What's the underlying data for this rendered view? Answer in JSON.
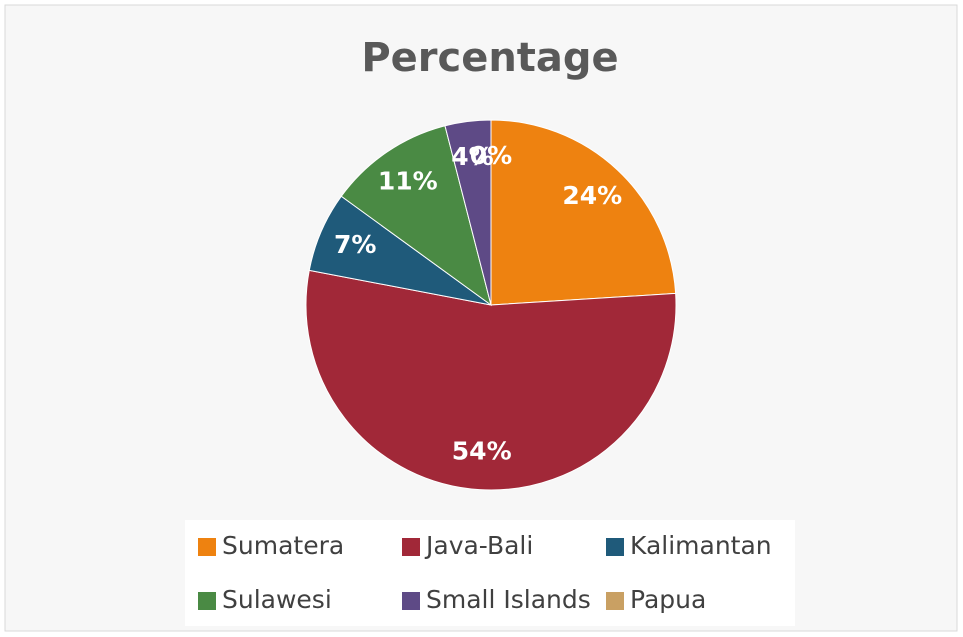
{
  "chart_data": {
    "type": "pie",
    "title": "Percentage",
    "categories": [
      "Sumatera",
      "Java-Bali",
      "Kalimantan",
      "Sulawesi",
      "Small Islands",
      "Papua"
    ],
    "values": [
      24,
      54,
      7,
      11,
      4,
      0
    ],
    "value_labels": [
      "24%",
      "54%",
      "7%",
      "11%",
      "4%",
      "0%"
    ],
    "colors": [
      "#ee8210",
      "#a12838",
      "#1f5a7a",
      "#4a8a44",
      "#5e4a86",
      "#c9a063"
    ],
    "legend": "bottom"
  }
}
